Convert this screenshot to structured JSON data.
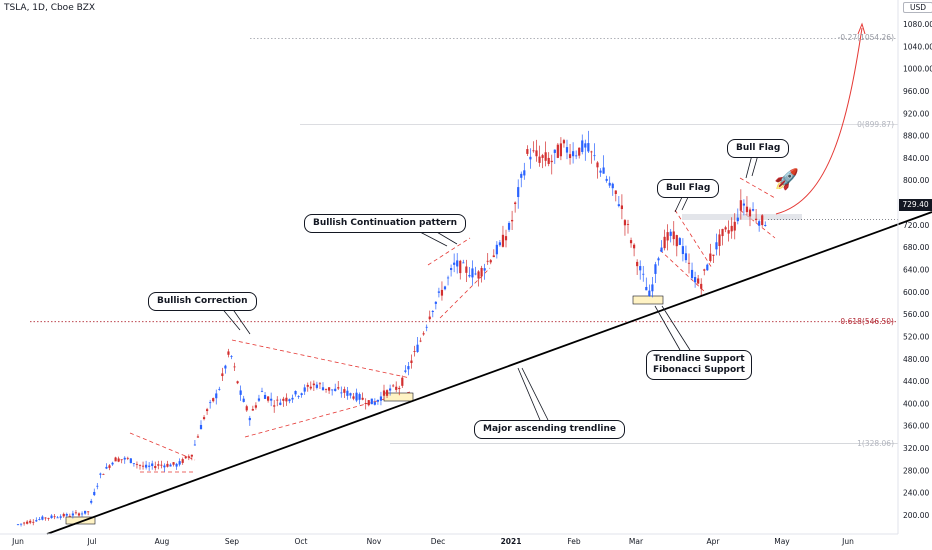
{
  "header": {
    "title": "TSLA, 1D, Cboe BZX",
    "unit": "USD"
  },
  "last_price": "729.40",
  "fib_levels": [
    {
      "label": "-0.27(1054.26)",
      "value": 1054.26,
      "color": "#9598a1",
      "style": "dotted"
    },
    {
      "label": "0(899.87)",
      "value": 899.87,
      "color": "#b2b5be",
      "style": "solid"
    },
    {
      "label": "0.618(546.50)",
      "value": 546.5,
      "color": "#b22833",
      "style": "dotted"
    },
    {
      "label": "1(328.06)",
      "value": 328.06,
      "color": "#b2b5be",
      "style": "solid"
    }
  ],
  "annotations": {
    "bullish_correction": "Bullish Correction",
    "bullish_continuation": "Bullish Continuation pattern",
    "bull_flag_1": "Bull Flag",
    "bull_flag_2": "Bull Flag",
    "support_line1": "Trendline Support",
    "support_line2": "Fibonacci Support",
    "major_trendline": "Major ascending trendline"
  },
  "icons": {
    "rocket": "rocket-icon"
  },
  "colors": {
    "up": "#2962ff",
    "down": "#d32f2f",
    "trendline": "#000000",
    "pattern": "#e53935",
    "projection": "#e53935"
  },
  "chart_data": {
    "type": "candlestick",
    "title": "TSLA, 1D, Cboe BZX",
    "ylabel": "USD",
    "ylim": [
      170,
      1080
    ],
    "y_ticks": [
      200,
      240,
      280,
      320,
      360,
      400,
      440,
      480,
      520,
      560,
      600,
      640,
      680,
      720,
      760,
      800,
      840,
      880,
      920,
      960,
      1000,
      1040,
      1080
    ],
    "x_ticks": [
      "Jun",
      "Jul",
      "Aug",
      "Sep",
      "Oct",
      "Nov",
      "Dec",
      "2021",
      "Feb",
      "Mar",
      "Apr",
      "May",
      "Jun"
    ],
    "series": [
      {
        "x": [
          "Jun",
          "Jul",
          "Aug",
          "Sep",
          "Oct",
          "Nov",
          "Dec",
          "2021",
          "Feb",
          "Mar",
          "Apr"
        ],
        "values": [
          180,
          200,
          290,
          500,
          430,
          400,
          570,
          740,
          880,
          700,
          690
        ]
      }
    ],
    "last_value": 729.4
  }
}
